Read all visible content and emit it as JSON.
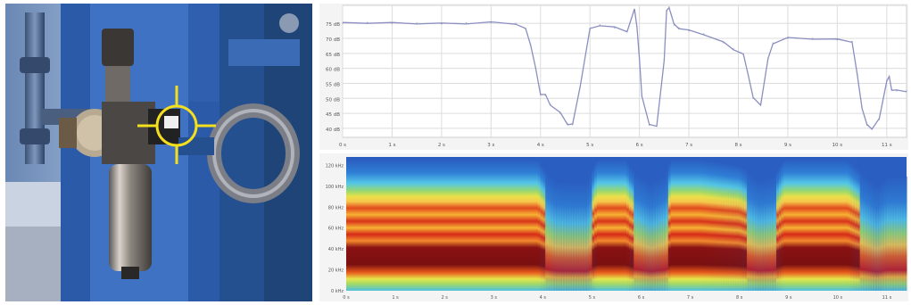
{
  "photo": {
    "description_marker": "crosshair-target"
  },
  "line_chart": {
    "y_ticks": [
      "75 dB",
      "70 dB",
      "65 dB",
      "60 dB",
      "55 dB",
      "50 dB",
      "45 dB",
      "40 dB"
    ],
    "x_ticks": [
      "0 s",
      "1 s",
      "2 s",
      "3 s",
      "4 s",
      "5 s",
      "6 s",
      "7 s",
      "8 s",
      "9 s",
      "10 s",
      "11 s"
    ]
  },
  "spectrogram": {
    "y_ticks": [
      "120 kHz",
      "100 kHz",
      "80 kHz",
      "60 kHz",
      "40 kHz",
      "20 kHz",
      "0 kHz"
    ],
    "x_ticks": [
      "0 s",
      "1 s",
      "2 s",
      "3 s",
      "4 s",
      "5 s",
      "6 s",
      "7 s",
      "8 s",
      "9 s",
      "10 s",
      "11 s"
    ]
  },
  "chart_data": [
    {
      "type": "line",
      "title": "",
      "xlabel": "",
      "ylabel": "",
      "xlim": [
        0,
        11.4
      ],
      "ylim": [
        37,
        81
      ],
      "grid": true,
      "series": [
        {
          "color": "#8a8fc0",
          "x": [
            0,
            0.5,
            1,
            1.5,
            2,
            2.5,
            3,
            3.5,
            3.7,
            3.8,
            3.9,
            4.0,
            4.1,
            4.2,
            4.4,
            4.55,
            4.65,
            4.8,
            5.0,
            5.2,
            5.5,
            5.75,
            5.9,
            5.95,
            6.0,
            6.05,
            6.2,
            6.35,
            6.45,
            6.5,
            6.55,
            6.6,
            6.7,
            6.8,
            7.0,
            7.3,
            7.7,
            7.9,
            8.1,
            8.2,
            8.3,
            8.45,
            8.6,
            8.7,
            9.0,
            9.5,
            10.0,
            10.3,
            10.4,
            10.5,
            10.6,
            10.7,
            10.85,
            11.0,
            11.05,
            11.1,
            11.2,
            11.4
          ],
          "values": [
            75,
            75.3,
            75,
            75.1,
            74.8,
            75.1,
            75.2,
            75,
            73,
            68,
            60,
            51.5,
            51,
            48,
            45,
            41.5,
            41.2,
            54,
            73,
            74.5,
            73.5,
            72.5,
            79.5,
            74,
            63,
            51,
            41,
            41,
            55,
            63,
            79,
            80.5,
            74.5,
            73.5,
            72.5,
            71.5,
            68.5,
            66.5,
            64.5,
            58,
            50,
            48,
            63,
            68.5,
            70,
            70,
            69.5,
            69,
            58,
            47,
            41,
            40,
            43,
            56,
            57,
            53,
            52.5,
            52.5
          ]
        }
      ]
    },
    {
      "type": "heatmap",
      "title": "",
      "xlabel": "",
      "ylabel": "",
      "xlim": [
        0,
        11.4
      ],
      "ylim": [
        0,
        128
      ],
      "colormap": [
        "#2f7fd6",
        "#53c7e6",
        "#8fd27a",
        "#e6e84a",
        "#f6b233",
        "#e85a1c",
        "#c4181c",
        "#7a0f10"
      ],
      "x": [
        0,
        3.9,
        4.0,
        4.25,
        4.5,
        4.9,
        5.1,
        5.7,
        5.8,
        6.2,
        6.5,
        6.6,
        6.8,
        7.2,
        8.0,
        8.4,
        8.7,
        8.9,
        10.2,
        10.5,
        10.8,
        11.0,
        11.4
      ],
      "active": [
        1,
        1,
        0.8,
        0.45,
        0.4,
        0.4,
        1,
        1,
        0.75,
        0.35,
        0.6,
        1,
        1,
        1,
        0.85,
        0.45,
        0.55,
        1,
        1,
        0.65,
        0.3,
        0.55,
        0.55
      ]
    }
  ]
}
